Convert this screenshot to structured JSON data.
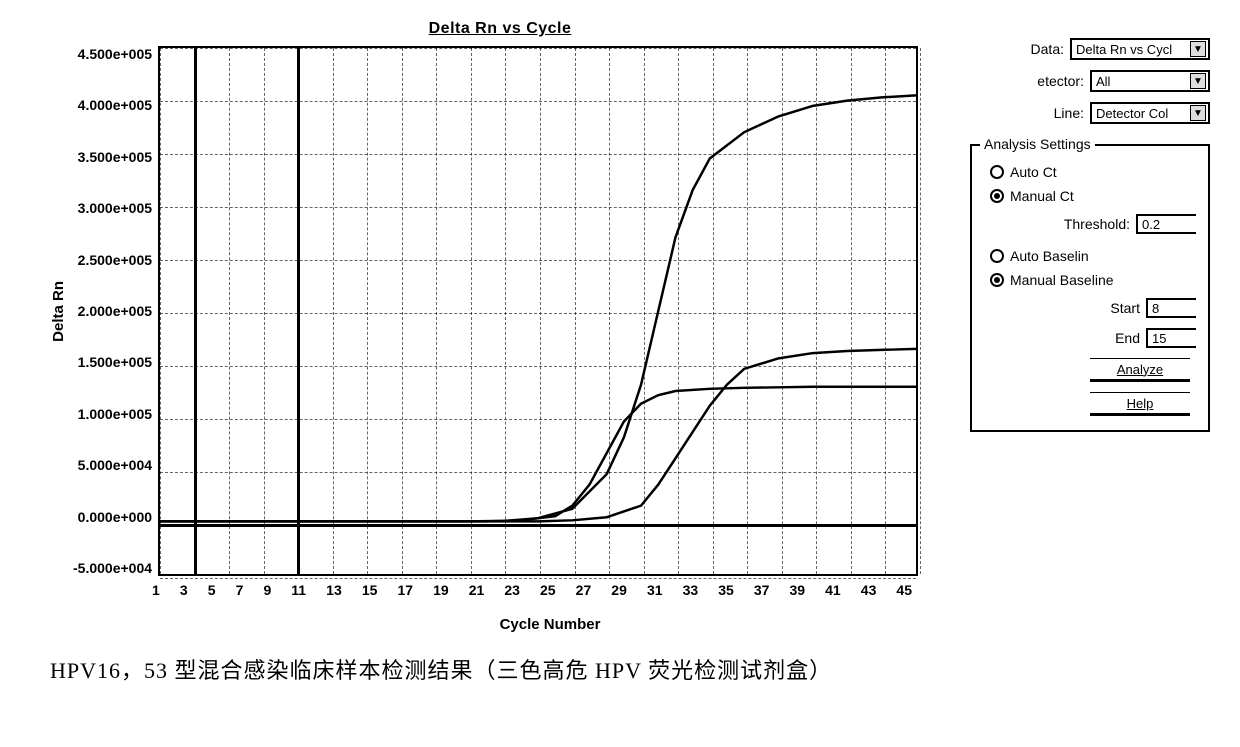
{
  "chart": {
    "type": "line",
    "title": "Delta Rn vs Cycle",
    "xlabel": "Cycle Number",
    "ylabel": "Delta Rn",
    "xlim": [
      1,
      45
    ],
    "ylim": [
      -50000,
      450000
    ],
    "xtick_start": 1,
    "xtick_step": 2,
    "xticks": [
      "1",
      "3",
      "5",
      "7",
      "9",
      "11",
      "13",
      "15",
      "17",
      "19",
      "21",
      "23",
      "25",
      "27",
      "29",
      "31",
      "33",
      "35",
      "37",
      "39",
      "41",
      "43",
      "45"
    ],
    "yticks": [
      "4.500e+005",
      "4.000e+005",
      "3.500e+005",
      "3.000e+005",
      "2.500e+005",
      "2.000e+005",
      "1.500e+005",
      "1.000e+005",
      "5.000e+004",
      "0.000e+000",
      "-5.000e+004"
    ],
    "ytick_values": [
      450000,
      400000,
      350000,
      300000,
      250000,
      200000,
      150000,
      100000,
      50000,
      0,
      -50000
    ],
    "background_color": "#ffffff",
    "grid_color": "#000000",
    "grid_dash": true,
    "border_color": "#000000",
    "zero_line_y": 0,
    "marker_vlines": [
      3,
      9
    ],
    "line_color": "#000000",
    "line_width": 2.5,
    "series": [
      {
        "name": "curve-high",
        "points": [
          [
            1,
            0
          ],
          [
            19,
            0
          ],
          [
            21,
            500
          ],
          [
            23,
            3000
          ],
          [
            25,
            12000
          ],
          [
            27,
            45000
          ],
          [
            28,
            80000
          ],
          [
            29,
            130000
          ],
          [
            30,
            200000
          ],
          [
            31,
            270000
          ],
          [
            32,
            315000
          ],
          [
            33,
            345000
          ],
          [
            35,
            370000
          ],
          [
            37,
            385000
          ],
          [
            39,
            395000
          ],
          [
            41,
            400000
          ],
          [
            43,
            403000
          ],
          [
            45,
            405000
          ]
        ]
      },
      {
        "name": "curve-mid",
        "points": [
          [
            1,
            0
          ],
          [
            23,
            0
          ],
          [
            25,
            1000
          ],
          [
            27,
            4000
          ],
          [
            29,
            15000
          ],
          [
            30,
            35000
          ],
          [
            31,
            60000
          ],
          [
            32,
            85000
          ],
          [
            33,
            110000
          ],
          [
            34,
            130000
          ],
          [
            35,
            145000
          ],
          [
            37,
            155000
          ],
          [
            39,
            160000
          ],
          [
            41,
            162000
          ],
          [
            43,
            163000
          ],
          [
            45,
            164000
          ]
        ]
      },
      {
        "name": "curve-low",
        "points": [
          [
            1,
            0
          ],
          [
            20,
            0
          ],
          [
            22,
            1000
          ],
          [
            24,
            5000
          ],
          [
            25,
            15000
          ],
          [
            26,
            35000
          ],
          [
            27,
            65000
          ],
          [
            28,
            95000
          ],
          [
            29,
            112000
          ],
          [
            30,
            120000
          ],
          [
            31,
            124000
          ],
          [
            33,
            126000
          ],
          [
            35,
            127000
          ],
          [
            37,
            127500
          ],
          [
            39,
            128000
          ],
          [
            41,
            128000
          ],
          [
            43,
            128000
          ],
          [
            45,
            128000
          ]
        ]
      }
    ]
  },
  "controls": {
    "data_label": "Data:",
    "data_value": "Delta Rn vs Cycl",
    "detector_label": "etector:",
    "detector_value": "All",
    "line_label": "Line:",
    "line_value": "Detector Col",
    "settings_legend": "Analysis Settings",
    "auto_ct_label": "Auto Ct",
    "manual_ct_label": "Manual Ct",
    "ct_mode": "manual",
    "threshold_label": "Threshold:",
    "threshold_value": "0.2",
    "auto_baseline_label": "Auto Baselin",
    "manual_baseline_label": "Manual Baseline",
    "baseline_mode": "manual",
    "start_label": "Start",
    "start_value": "8",
    "end_label": "End",
    "end_value": "15",
    "analyze_label": "Analyze",
    "help_label": "Help"
  },
  "caption": "HPV16，53 型混合感染临床样本检测结果（三色高危 HPV 荧光检测试剂盒）"
}
